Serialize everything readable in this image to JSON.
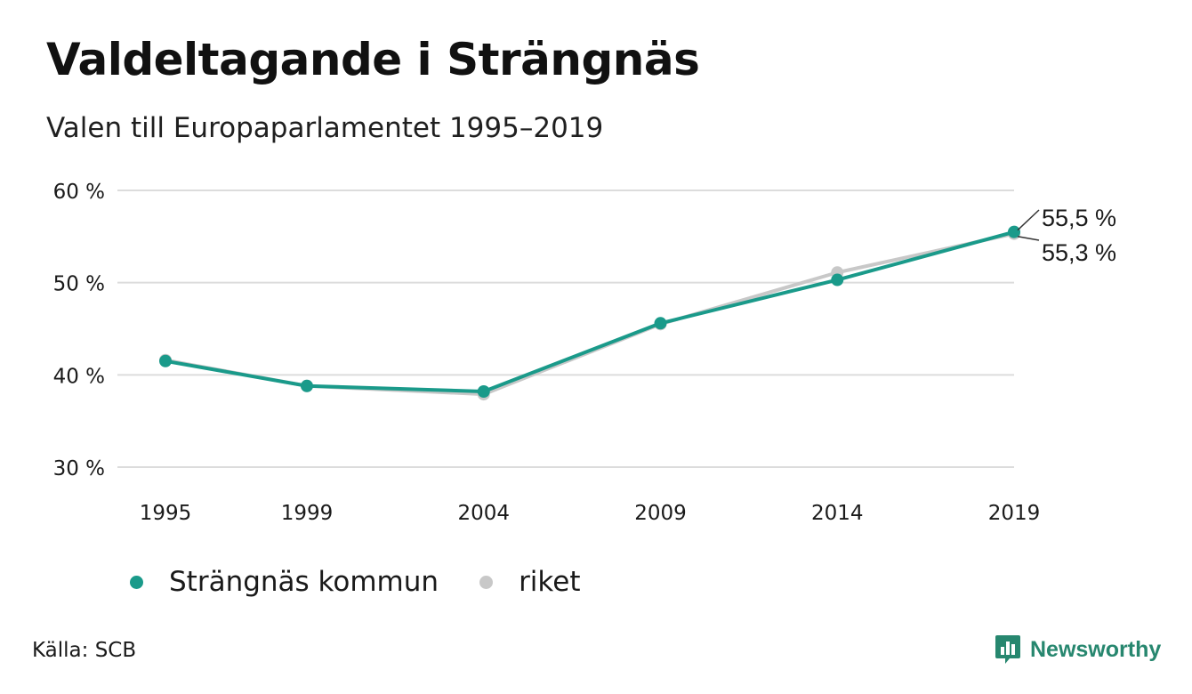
{
  "header": {
    "title": "Valdeltagande i Strängnäs",
    "subtitle": "Valen till Europaparlamentet 1995–2019"
  },
  "chart_data": {
    "type": "line",
    "title": "Valdeltagande i Strängnäs",
    "subtitle": "Valen till Europaparlamentet 1995–2019",
    "x": [
      "1995",
      "1999",
      "2004",
      "2009",
      "2014",
      "2019"
    ],
    "x_numeric": [
      1995,
      1999,
      2004,
      2009,
      2014,
      2019
    ],
    "ylim": [
      30,
      60
    ],
    "yticks": [
      30,
      40,
      50,
      60
    ],
    "ytick_labels": [
      "30 %",
      "40 %",
      "50 %",
      "60 %"
    ],
    "xlabel": "",
    "ylabel": "",
    "grid": "horizontal",
    "legend_position": "bottom",
    "series": [
      {
        "name": "riket",
        "color": "#c8c8c8",
        "values": [
          41.6,
          38.8,
          37.9,
          45.5,
          51.1,
          55.3
        ],
        "end_label": "55,3 %"
      },
      {
        "name": "Strängnäs kommun",
        "color": "#1a9a8a",
        "values": [
          41.5,
          38.8,
          38.2,
          45.6,
          50.3,
          55.5
        ],
        "end_label": "55,5 %"
      }
    ]
  },
  "legend": [
    {
      "label": "Strängnäs kommun",
      "color": "#1a9a8a"
    },
    {
      "label": "riket",
      "color": "#c8c8c8"
    }
  ],
  "footer": {
    "source": "Källa: SCB",
    "brand": "Newsworthy",
    "brand_color": "#27876f",
    "brand_icon": "bar-chart-speech-bubble-icon"
  }
}
